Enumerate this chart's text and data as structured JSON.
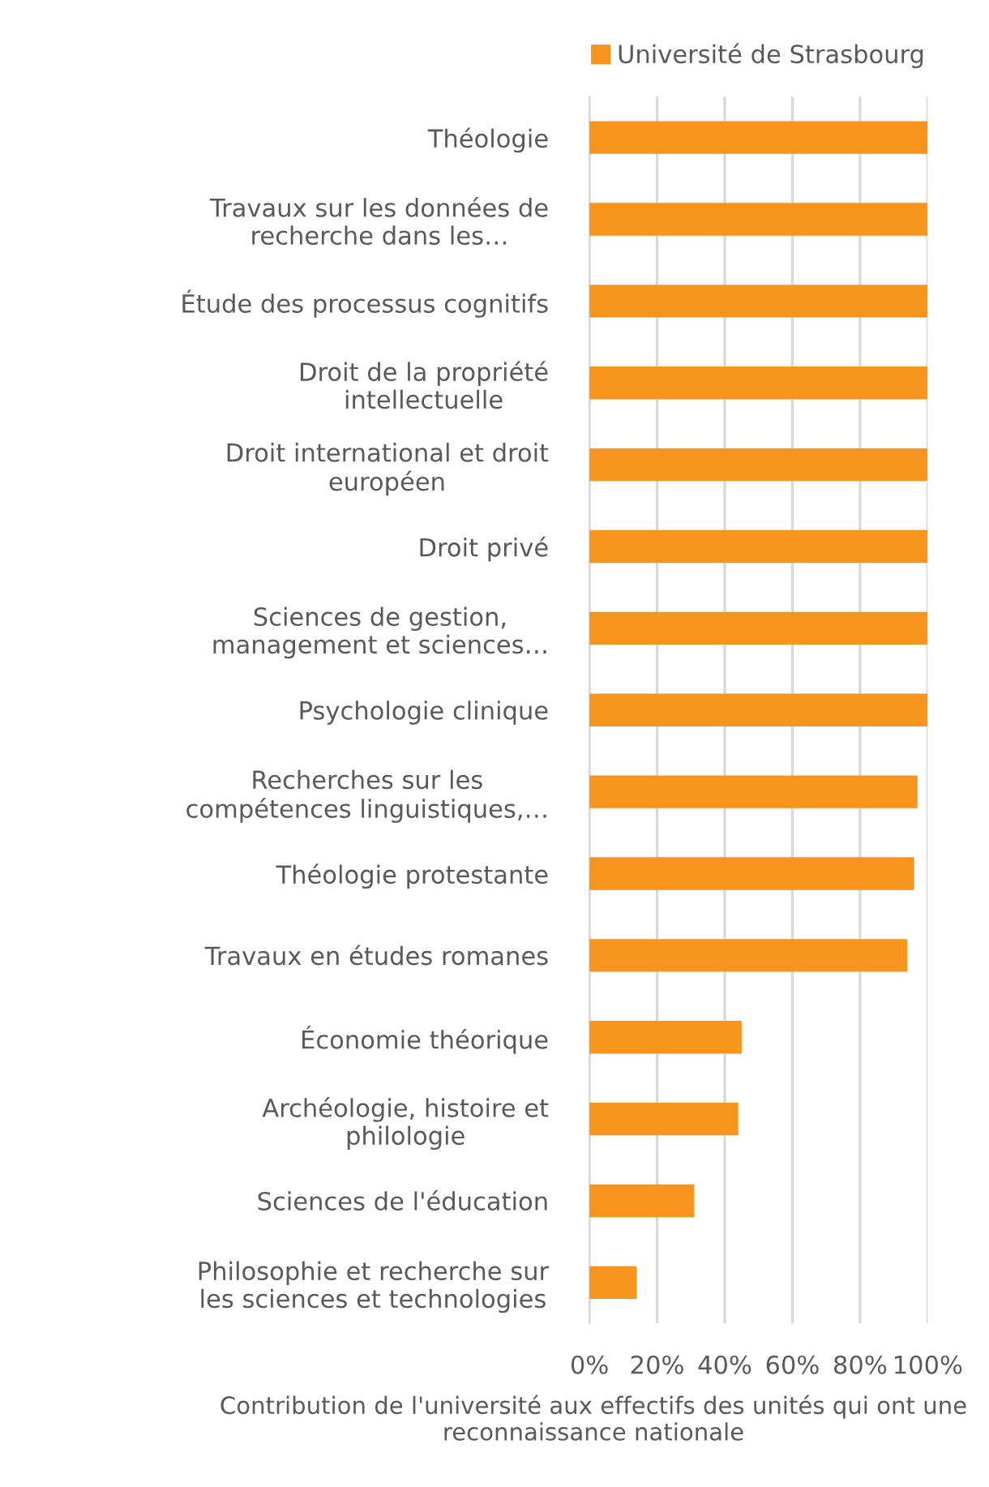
{
  "chart_data": {
    "type": "bar",
    "orientation": "horizontal",
    "xlabel": "Contribution de l'université aux effectifs des unités qui ont une reconnaissance nationale",
    "categories": [
      "Théologie",
      "Travaux sur les données de\nrecherche dans les…",
      "Étude des processus cognitifs",
      "Droit de la propriété\nintellectuelle",
      "Droit international et droit\neuropéen",
      "Droit privé",
      "Sciences de gestion,\nmanagement et sciences…",
      "Psychologie clinique",
      "Recherches sur les\ncompétences linguistiques,…",
      "Théologie protestante",
      "Travaux en études romanes",
      "Économie théorique",
      "Archéologie, histoire et\nphilologie",
      "Sciences de l'éducation",
      "Philosophie et recherche sur\nles sciences et technologies"
    ],
    "series": [
      {
        "name": "Université de Strasbourg",
        "color": "#f7941d",
        "values": [
          100,
          100,
          100,
          100,
          100,
          100,
          100,
          100,
          97,
          96,
          94,
          45,
          44,
          31,
          14
        ]
      }
    ],
    "xlim": [
      0,
      100
    ],
    "xticks": [
      {
        "value": 0,
        "label": "0%"
      },
      {
        "value": 20,
        "label": "20%"
      },
      {
        "value": 40,
        "label": "40%"
      },
      {
        "value": 60,
        "label": "60%"
      },
      {
        "value": 80,
        "label": "80%"
      },
      {
        "value": 100,
        "label": "100%"
      }
    ],
    "grid": "x",
    "legend": "top"
  }
}
